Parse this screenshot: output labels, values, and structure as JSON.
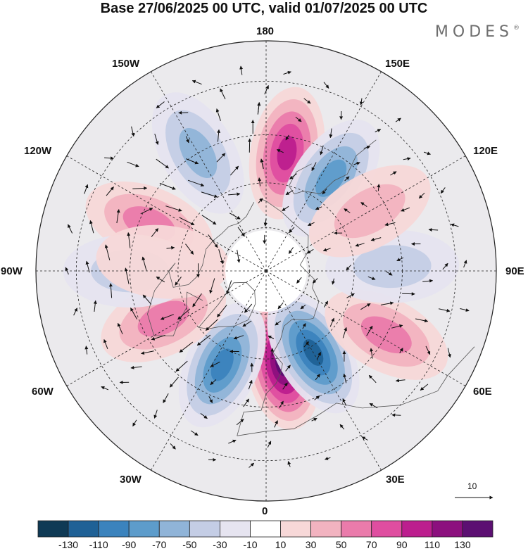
{
  "title": "Base 27/06/2025 00 UTC, valid 01/07/2025 00 UTC",
  "logo": {
    "text": "MODES",
    "mark": "®"
  },
  "longitude_labels": {
    "lon_180": "180",
    "lon_150e": "150E",
    "lon_120e": "120E",
    "lon_90e": "90E",
    "lon_60e": "60E",
    "lon_30e": "30E",
    "lon_0": "0",
    "lon_30w": "30W",
    "lon_60w": "60W",
    "lon_90w": "90W",
    "lon_120w": "120W",
    "lon_150w": "150W"
  },
  "reference_vector": {
    "value": "10"
  },
  "colorbar": {
    "colors": [
      "#0f3a55",
      "#1f6196",
      "#3b83bd",
      "#5d9ccb",
      "#90b4d8",
      "#c4cde5",
      "#e6e4f0",
      "#ffffff",
      "#f7d8d8",
      "#f2b3c0",
      "#ea7bab",
      "#df4ea0",
      "#bc1e8e",
      "#8c107e",
      "#5c0f72"
    ],
    "labels": [
      "-130",
      "-110",
      "-90",
      "-70",
      "-50",
      "-30",
      "-10",
      "10",
      "30",
      "50",
      "70",
      "90",
      "110",
      "130"
    ]
  },
  "chart_data": {
    "type": "heatmap",
    "projection": "north-polar-stereographic",
    "field_units": "shaded anomaly, levels -130 to 130",
    "anomaly_centers": [
      {
        "lon": 10,
        "lat": 58,
        "value": 130
      },
      {
        "lon": 30,
        "lat": 58,
        "value": -110
      },
      {
        "lon": -25,
        "lat": 55,
        "value": -100
      },
      {
        "lon": -65,
        "lat": 52,
        "value": 60
      },
      {
        "lon": -112,
        "lat": 48,
        "value": 50
      },
      {
        "lon": -90,
        "lat": 45,
        "value": -40
      },
      {
        "lon": -150,
        "lat": 45,
        "value": -60
      },
      {
        "lon": 170,
        "lat": 50,
        "value": 100
      },
      {
        "lon": 145,
        "lat": 52,
        "value": -70
      },
      {
        "lon": 62,
        "lat": 45,
        "value": 60
      },
      {
        "lon": 92,
        "lat": 48,
        "value": -40
      },
      {
        "lon": 120,
        "lat": 50,
        "value": 30
      },
      {
        "lon": -95,
        "lat": 55,
        "value": 20
      }
    ]
  }
}
